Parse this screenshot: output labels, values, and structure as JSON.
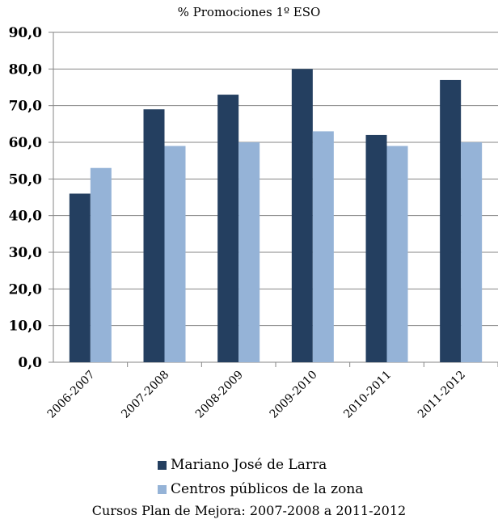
{
  "chart_data": {
    "type": "bar",
    "title": "% Promociones  1º ESO",
    "categories": [
      "2006-2007",
      "2007-2008",
      "2008-2009",
      "2009-2010",
      "2010-2011",
      "2011-2012"
    ],
    "series": [
      {
        "name": "Mariano José de Larra",
        "color": "#243F60",
        "values": [
          46,
          69,
          73,
          80,
          62,
          77
        ]
      },
      {
        "name": "Centros públicos de la zona",
        "color": "#95B3D7",
        "values": [
          53,
          59,
          60,
          63,
          59,
          60
        ]
      }
    ],
    "ylim": [
      0,
      90
    ],
    "yticks": [
      "0,0",
      "10,0",
      "20,0",
      "30,0",
      "40,0",
      "50,0",
      "60,0",
      "70,0",
      "80,0",
      "90,0"
    ],
    "grid": true,
    "legend_position": "bottom"
  },
  "footer_text": "Cursos Plan de Mejora: 2007-2008 a 2011-2012"
}
